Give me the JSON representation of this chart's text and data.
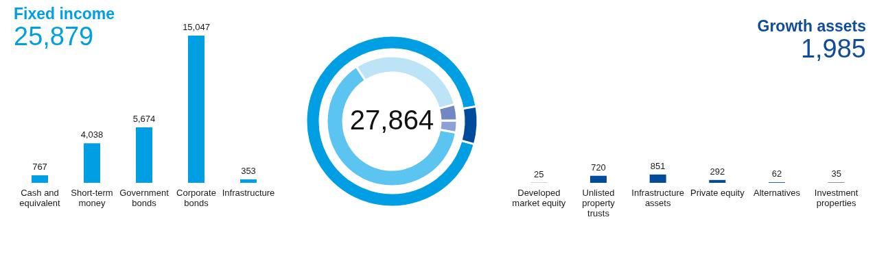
{
  "chart_data": [
    {
      "type": "bar",
      "title": "Fixed income",
      "subtitle": "25,879",
      "categories": [
        "Cash and equivalent",
        "Short-term money",
        "Government bonds",
        "Corporate bonds",
        "Infrastructure"
      ],
      "values": [
        767,
        4038,
        5674,
        15047,
        353
      ],
      "value_labels": [
        "767",
        "4,038",
        "5,674",
        "15,047",
        "353"
      ],
      "color": "#009fe3"
    },
    {
      "type": "donut",
      "annotations": [
        "27,864"
      ],
      "series": [
        {
          "values": [
            92.9,
            7.1
          ],
          "colors": [
            "#009fe3",
            "#004b9b"
          ]
        },
        {
          "values": [
            30,
            4,
            3,
            63
          ],
          "colors": [
            "#bde3f7",
            "#7088c4",
            "#8fa0d4",
            "#5bc4f1"
          ]
        }
      ]
    },
    {
      "type": "bar",
      "title": "Growth assets",
      "subtitle": "1,985",
      "categories": [
        "Developed market equity",
        "Unlisted property trusts",
        "Infrastructure assets",
        "Private equity",
        "Alternatives",
        "Investment properties"
      ],
      "values": [
        25,
        720,
        851,
        292,
        62,
        35
      ],
      "value_labels": [
        "25",
        "720",
        "851",
        "292",
        "62",
        "35"
      ],
      "colors": [
        "#0f4d9c",
        "#004b9b",
        "#004b9b",
        "#004b9b",
        "#0f4d9c",
        "#1a1a1a"
      ]
    }
  ]
}
